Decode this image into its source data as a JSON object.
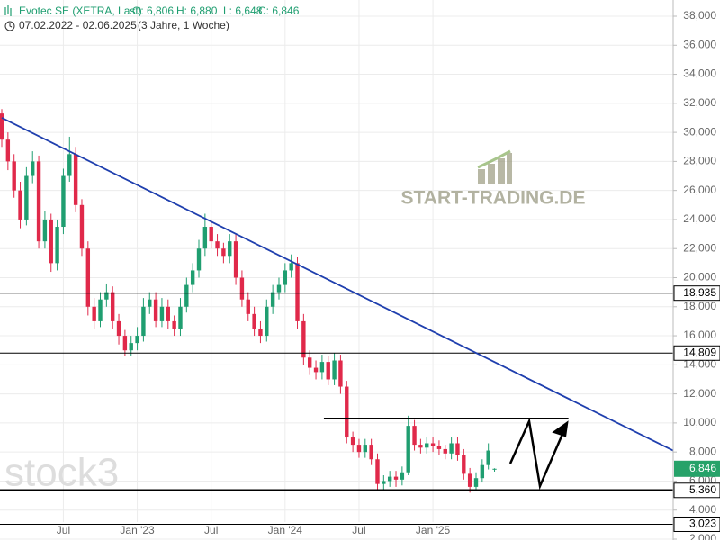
{
  "chart_data": {
    "type": "candlestick",
    "header": {
      "instrument": "Evotec SE (XETRA, Last)",
      "open": "O: 6,806",
      "high": "H: 6,880",
      "low": "L: 6,648",
      "close": "C: 6,846",
      "range": "07.02.2022 - 02.06.2025",
      "span": "(3 Jahre, 1 Woche)"
    },
    "watermarks": [
      "START-TRADING.DE",
      "stock3"
    ],
    "up_color": "#1f9e70",
    "down_color": "#e0294a",
    "grid": true,
    "xlim": [
      0,
      109
    ],
    "ylim": [
      2,
      38
    ],
    "xticks": [
      {
        "value": 10,
        "label": "Jul"
      },
      {
        "value": 22,
        "label": "Jan '23"
      },
      {
        "value": 34,
        "label": "Jul"
      },
      {
        "value": 46,
        "label": "Jan '24"
      },
      {
        "value": 58,
        "label": "Jul"
      },
      {
        "value": 70,
        "label": "Jan '25"
      }
    ],
    "yticks": [
      {
        "value": 2,
        "label": "2,000"
      },
      {
        "value": 4,
        "label": "4,000"
      },
      {
        "value": 6,
        "label": "6,000"
      },
      {
        "value": 8,
        "label": "8,000"
      },
      {
        "value": 10,
        "label": "10,000"
      },
      {
        "value": 12,
        "label": "12,000"
      },
      {
        "value": 14,
        "label": "14,000"
      },
      {
        "value": 16,
        "label": "16,000"
      },
      {
        "value": 18,
        "label": "18,000"
      },
      {
        "value": 20,
        "label": "20,000"
      },
      {
        "value": 22,
        "label": "22,000"
      },
      {
        "value": 24,
        "label": "24,000"
      },
      {
        "value": 26,
        "label": "26,000"
      },
      {
        "value": 28,
        "label": "28,000"
      },
      {
        "value": 30,
        "label": "30,000"
      },
      {
        "value": 32,
        "label": "32,000"
      },
      {
        "value": 34,
        "label": "34,000"
      },
      {
        "value": 36,
        "label": "36,000"
      },
      {
        "value": 38,
        "label": "38,000"
      }
    ],
    "candles": [
      [
        31.3,
        31.6,
        29.0,
        29.5
      ],
      [
        29.5,
        30.0,
        27.4,
        28
      ],
      [
        28,
        28.5,
        25.5,
        26
      ],
      [
        26,
        26.6,
        23.4,
        24
      ],
      [
        24,
        27.6,
        23.6,
        27
      ],
      [
        27,
        28.7,
        26.5,
        28
      ],
      [
        28,
        28.4,
        22.0,
        22.5
      ],
      [
        22.5,
        24.6,
        22.0,
        24
      ],
      [
        24,
        24.4,
        20.4,
        21
      ],
      [
        21,
        24.0,
        20.5,
        23.5
      ],
      [
        23.5,
        27.5,
        23.0,
        27
      ],
      [
        27,
        29.7,
        26.6,
        28.5
      ],
      [
        28.5,
        29.0,
        24.5,
        25
      ],
      [
        25,
        25.4,
        21.5,
        22
      ],
      [
        22,
        22.5,
        17.4,
        18
      ],
      [
        18,
        18.6,
        16.5,
        17
      ],
      [
        17,
        19.0,
        16.6,
        18.5
      ],
      [
        18.5,
        19.6,
        18.0,
        19
      ],
      [
        19,
        19.4,
        16.5,
        17
      ],
      [
        17,
        17.5,
        15.4,
        16
      ],
      [
        16,
        16.4,
        14.6,
        15
      ],
      [
        15,
        16.0,
        14.6,
        15.5
      ],
      [
        15.5,
        16.6,
        15.0,
        16
      ],
      [
        16,
        18.6,
        15.6,
        18
      ],
      [
        18,
        19.0,
        17.5,
        18.5
      ],
      [
        18.5,
        19.0,
        16.6,
        17
      ],
      [
        17,
        18.6,
        16.6,
        18
      ],
      [
        18,
        18.5,
        16.5,
        17
      ],
      [
        17,
        17.4,
        16.0,
        16.5
      ],
      [
        16.5,
        18.6,
        16.0,
        18
      ],
      [
        18,
        20.0,
        17.6,
        19.5
      ],
      [
        19.5,
        21.0,
        19.0,
        20.5
      ],
      [
        20.5,
        22.6,
        20.0,
        22
      ],
      [
        22,
        24.4,
        21.5,
        23.5
      ],
      [
        23.5,
        24.0,
        22.0,
        22.5
      ],
      [
        22.5,
        23.0,
        21.5,
        22
      ],
      [
        22,
        22.4,
        21.0,
        21.5
      ],
      [
        21.5,
        23.0,
        21.0,
        22.5
      ],
      [
        22.5,
        23.0,
        19.5,
        20
      ],
      [
        20,
        20.5,
        18.0,
        18.5
      ],
      [
        18.5,
        19.0,
        17.0,
        17.5
      ],
      [
        17.5,
        18.0,
        16.0,
        16.5
      ],
      [
        16.5,
        17.0,
        15.5,
        16
      ],
      [
        16,
        18.5,
        15.6,
        18
      ],
      [
        18,
        19.5,
        17.5,
        19
      ],
      [
        19,
        20.0,
        18.5,
        19.5
      ],
      [
        19.5,
        21.0,
        19.0,
        20.5
      ],
      [
        20.5,
        21.6,
        20.0,
        21
      ],
      [
        21,
        21.4,
        16.5,
        17
      ],
      [
        17,
        17.5,
        14.0,
        14.5
      ],
      [
        14.5,
        15.0,
        13.3,
        13.8
      ],
      [
        13.8,
        14.3,
        13.0,
        13.5
      ],
      [
        13.5,
        14.7,
        13.0,
        14.2
      ],
      [
        14.2,
        14.6,
        12.6,
        13
      ],
      [
        13,
        14.8,
        12.6,
        14.3
      ],
      [
        14.3,
        14.7,
        12.0,
        12.5
      ],
      [
        12.5,
        12.9,
        8.6,
        9
      ],
      [
        9,
        9.4,
        8.0,
        8.5
      ],
      [
        8.5,
        8.9,
        7.6,
        8
      ],
      [
        8,
        8.9,
        7.6,
        8.5
      ],
      [
        8.5,
        8.9,
        7.1,
        7.5
      ],
      [
        7.5,
        7.9,
        5.3,
        5.8
      ],
      [
        5.8,
        6.4,
        5.3,
        6
      ],
      [
        6,
        6.7,
        5.6,
        6.3
      ],
      [
        6.3,
        6.7,
        5.6,
        6.1
      ],
      [
        6.1,
        7.0,
        5.7,
        6.6
      ],
      [
        6.6,
        10.5,
        6.4,
        9.8
      ],
      [
        9.8,
        10.2,
        8.1,
        8.5
      ],
      [
        8.5,
        8.9,
        7.9,
        8.3
      ],
      [
        8.3,
        9.0,
        7.9,
        8.6
      ],
      [
        8.6,
        9.0,
        8.0,
        8.4
      ],
      [
        8.4,
        8.8,
        7.8,
        8.2
      ],
      [
        8.2,
        8.5,
        7.5,
        7.9
      ],
      [
        7.9,
        9.0,
        7.5,
        8.6
      ],
      [
        8.6,
        9.0,
        7.4,
        7.8
      ],
      [
        7.8,
        8.2,
        6.1,
        6.5
      ],
      [
        6.5,
        6.9,
        5.2,
        5.6
      ],
      [
        5.6,
        6.6,
        5.3,
        6.2
      ],
      [
        6.2,
        7.5,
        5.9,
        7.1
      ],
      [
        7.1,
        8.6,
        6.8,
        8.1
      ],
      [
        6.806,
        6.88,
        6.648,
        6.846
      ]
    ],
    "trendline": {
      "color": "#1f3fae",
      "x": [
        0,
        109
      ],
      "y": [
        31.0,
        8.1
      ]
    },
    "resistance": {
      "color": "#000000",
      "x": [
        52.3,
        92
      ],
      "y": [
        10.3,
        10.3
      ]
    },
    "levels": [
      {
        "value": 18.935,
        "label": "18,935",
        "emphasis": false
      },
      {
        "value": 14.809,
        "label": "14,809",
        "emphasis": false
      },
      {
        "value": 5.36,
        "label": "5,360",
        "emphasis": true
      },
      {
        "value": 3.023,
        "label": "3,023",
        "emphasis": false
      }
    ],
    "last": {
      "value": 6.846,
      "label": "6,846",
      "color": "#26a269"
    }
  }
}
